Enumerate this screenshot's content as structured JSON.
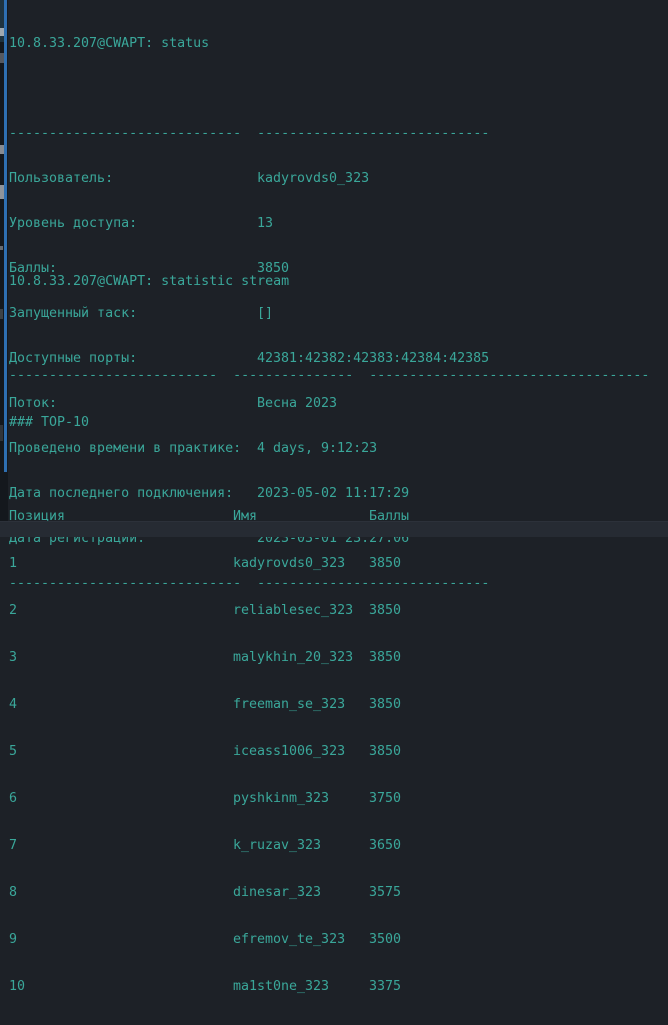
{
  "colors": {
    "background": "#1d2127",
    "text_teal": "#3aa79a",
    "accent_bar_blue": "#2e6fb2",
    "bottom_band": "#262b33"
  },
  "status": {
    "command": "10.8.33.207@CWAPT: status",
    "separator_top": "-----------------------------  -----------------------------",
    "rows": [
      {
        "label": "Пользователь:",
        "value": "kadyrovds0_323"
      },
      {
        "label": "Уровень доступа:",
        "value": "13"
      },
      {
        "label": "Баллы:",
        "value": "3850"
      },
      {
        "label": "Запущенный таск:",
        "value": "[]"
      },
      {
        "label": "Доступные порты:",
        "value": "42381:42382:42383:42384:42385"
      },
      {
        "label": "Поток:",
        "value": "Весна 2023"
      },
      {
        "label": "Проведено времени в практике:",
        "value": "4 days, 9:12:23"
      },
      {
        "label": "Дата последнего подключения:",
        "value": "2023-05-02 11:17:29"
      },
      {
        "label": "Дата регистрации:",
        "value": "2023-03-01 23:27:06"
      }
    ],
    "separator_bottom": "-----------------------------  -----------------------------"
  },
  "stream": {
    "command": "10.8.33.207@CWAPT: statistic stream",
    "separator": "--------------------------  ---------------  -----------------------------------",
    "heading": "### TOP-10",
    "table": {
      "headers": {
        "position": "Позиция",
        "name": "Имя",
        "points": "Баллы"
      },
      "rows": [
        {
          "position": "1",
          "name": "kadyrovds0_323",
          "points": "3850"
        },
        {
          "position": "2",
          "name": "reliablesec_323",
          "points": "3850"
        },
        {
          "position": "3",
          "name": "malykhin_20_323",
          "points": "3850"
        },
        {
          "position": "4",
          "name": "freeman_se_323",
          "points": "3850"
        },
        {
          "position": "5",
          "name": "iceass1006_323",
          "points": "3850"
        },
        {
          "position": "6",
          "name": "pyshkinm_323",
          "points": "3750"
        },
        {
          "position": "7",
          "name": "k_ruzav_323",
          "points": "3650"
        },
        {
          "position": "8",
          "name": "dinesar_323",
          "points": "3575"
        },
        {
          "position": "9",
          "name": "efremov_te_323",
          "points": "3500"
        },
        {
          "position": "10",
          "name": "ma1st0ne_323",
          "points": "3375"
        }
      ]
    }
  }
}
